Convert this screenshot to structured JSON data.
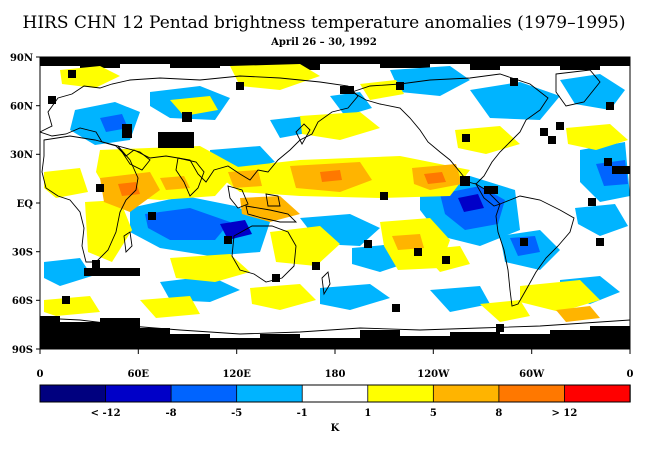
{
  "title": "HIRS CHN 12 Pentad brightness temperature anomalies (1979–1995)",
  "subtitle": "April 26 – 30, 1992",
  "map": {
    "lat_labels": [
      "90N",
      "60N",
      "30N",
      "EQ",
      "30S",
      "60S",
      "90S"
    ],
    "lon_labels": [
      "0",
      "60E",
      "120E",
      "180",
      "120W",
      "60W",
      "0"
    ],
    "ocean_color": "#ffffff",
    "missing_color": "#000000",
    "coast_color": "#000000"
  },
  "colorbar": {
    "unit": "K",
    "colors": [
      "#00007f",
      "#0000c8",
      "#0064ff",
      "#00b4ff",
      "#ffffff",
      "#ffff00",
      "#ffb400",
      "#ff7800",
      "#ff0000"
    ],
    "tick_labels": [
      "< -12",
      "-8",
      "-5",
      "-1",
      "1",
      "5",
      "8",
      "> 12"
    ]
  }
}
